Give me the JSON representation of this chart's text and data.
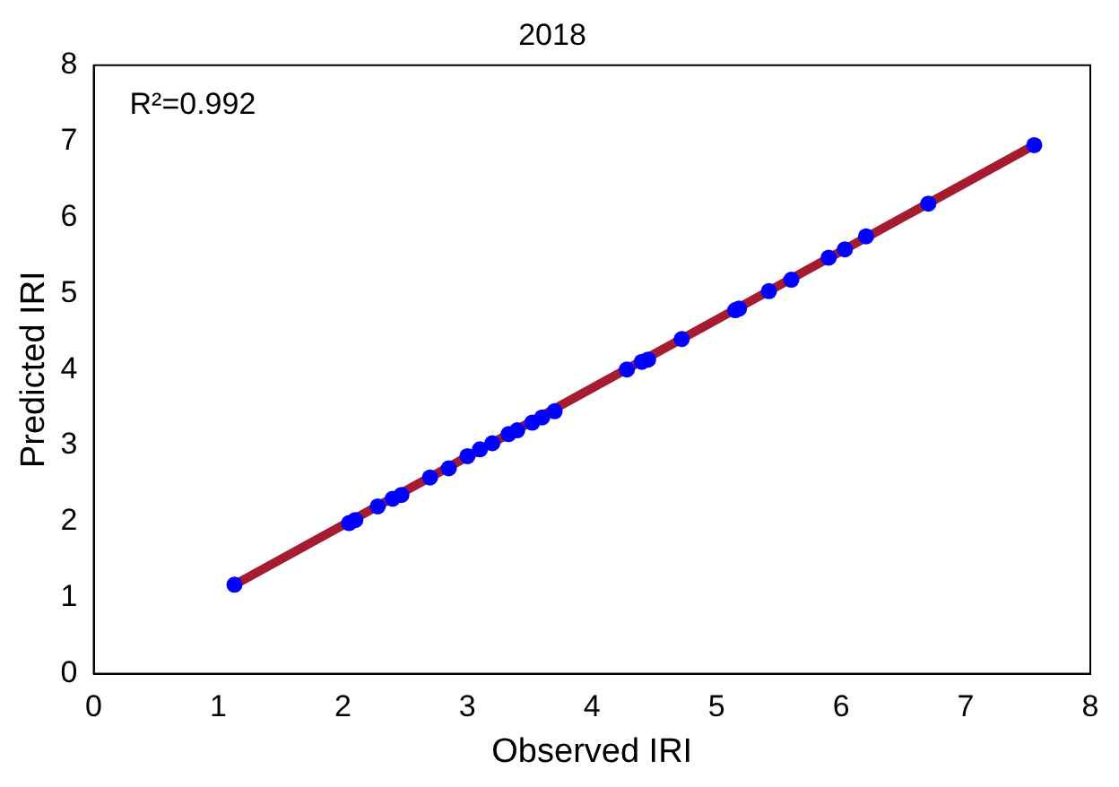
{
  "chart_data": {
    "type": "scatter",
    "title": "2018",
    "xlabel": "Observed IRI",
    "ylabel": "Predicted IRI",
    "annotations": [
      "R²=0.992"
    ],
    "xlim": [
      0,
      8
    ],
    "ylim": [
      0,
      8
    ],
    "xticks": [
      0,
      1,
      2,
      3,
      4,
      5,
      6,
      7,
      8
    ],
    "yticks": [
      0,
      1,
      2,
      3,
      4,
      5,
      6,
      7,
      8
    ],
    "grid": false,
    "legend": false,
    "series": [
      {
        "type": "line",
        "color": "#a51c30",
        "marker": "none",
        "line_style": "solid",
        "x": [
          1.13,
          7.55
        ],
        "values": [
          1.17,
          6.95
        ]
      },
      {
        "type": "scatter",
        "color": "#0000ff",
        "marker": "circle",
        "x": [
          1.13,
          2.05,
          2.1,
          2.28,
          2.4,
          2.47,
          2.7,
          2.85,
          3.0,
          3.1,
          3.2,
          3.33,
          3.4,
          3.52,
          3.6,
          3.7,
          4.28,
          4.4,
          4.45,
          4.72,
          5.15,
          5.18,
          5.42,
          5.6,
          5.9,
          6.03,
          6.2,
          6.7,
          7.55
        ],
        "values": [
          1.17,
          1.98,
          2.02,
          2.2,
          2.3,
          2.35,
          2.58,
          2.7,
          2.86,
          2.95,
          3.03,
          3.15,
          3.2,
          3.3,
          3.37,
          3.45,
          4.0,
          4.1,
          4.13,
          4.4,
          4.78,
          4.8,
          5.03,
          5.18,
          5.47,
          5.58,
          5.75,
          6.18,
          6.95
        ]
      }
    ]
  }
}
